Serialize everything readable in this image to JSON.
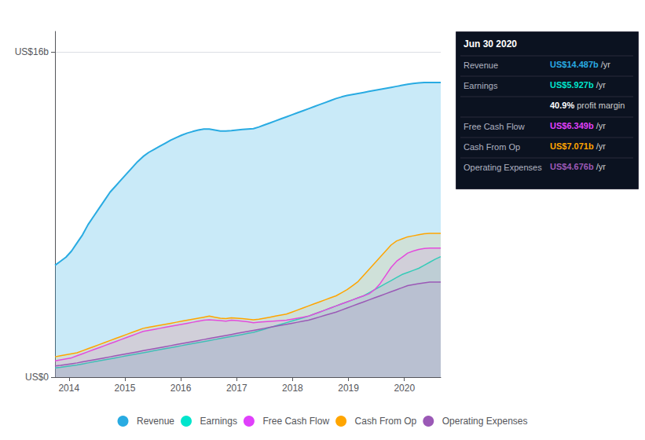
{
  "chart_data": {
    "type": "area",
    "x": [
      2013.75,
      2013.848571,
      2013.947143,
      2014.045714,
      2014.144286,
      2014.242857,
      2014.341429,
      2014.44,
      2014.538571,
      2014.637143,
      2014.735714,
      2014.834286,
      2014.932857,
      2015.031429,
      2015.13,
      2015.228571,
      2015.327143,
      2015.425714,
      2015.524286,
      2015.622857,
      2015.721429,
      2015.82,
      2015.918571,
      2016.017143,
      2016.115714,
      2016.214286,
      2016.312857,
      2016.411429,
      2016.51,
      2016.608571,
      2016.707143,
      2016.805714,
      2016.904286,
      2017.002857,
      2017.101429,
      2017.2,
      2017.298571,
      2017.397143,
      2017.495714,
      2017.594286,
      2017.692857,
      2017.791429,
      2017.89,
      2017.988571,
      2018.087143,
      2018.185714,
      2018.284286,
      2018.382857,
      2018.481429,
      2018.58,
      2018.678571,
      2018.777143,
      2018.875714,
      2018.974286,
      2019.072857,
      2019.171429,
      2019.27,
      2019.368571,
      2019.467143,
      2019.565714,
      2019.664286,
      2019.762857,
      2019.861429,
      2019.96,
      2020.058571,
      2020.157143,
      2020.255714,
      2020.354286,
      2020.452857,
      2020.551429,
      2020.65
    ],
    "series": [
      {
        "name": "Revenue",
        "color": "#29abe2",
        "values": [
          5.5,
          5.7,
          5.9,
          6.2,
          6.6,
          7.0,
          7.5,
          7.9,
          8.3,
          8.7,
          9.1,
          9.4,
          9.7,
          10.0,
          10.3,
          10.6,
          10.85,
          11.05,
          11.2,
          11.35,
          11.5,
          11.65,
          11.78,
          11.9,
          12.0,
          12.08,
          12.15,
          12.2,
          12.2,
          12.15,
          12.1,
          12.1,
          12.12,
          12.15,
          12.18,
          12.2,
          12.22,
          12.3,
          12.4,
          12.5,
          12.6,
          12.7,
          12.8,
          12.9,
          13.0,
          13.1,
          13.2,
          13.3,
          13.4,
          13.5,
          13.6,
          13.7,
          13.78,
          13.85,
          13.9,
          13.95,
          14.0,
          14.05,
          14.1,
          14.15,
          14.2,
          14.25,
          14.3,
          14.35,
          14.4,
          14.44,
          14.47,
          14.487,
          14.487,
          14.487,
          14.487
        ]
      },
      {
        "name": "Earnings",
        "color": "#00e5cc",
        "values": [
          0.45,
          0.48,
          0.52,
          0.56,
          0.6,
          0.65,
          0.7,
          0.75,
          0.8,
          0.85,
          0.9,
          0.95,
          1.0,
          1.05,
          1.1,
          1.15,
          1.2,
          1.25,
          1.3,
          1.35,
          1.4,
          1.45,
          1.5,
          1.55,
          1.6,
          1.65,
          1.7,
          1.75,
          1.8,
          1.85,
          1.9,
          1.95,
          2.0,
          2.05,
          2.1,
          2.15,
          2.2,
          2.28,
          2.36,
          2.44,
          2.52,
          2.6,
          2.68,
          2.76,
          2.84,
          2.92,
          3.0,
          3.1,
          3.2,
          3.3,
          3.4,
          3.5,
          3.6,
          3.7,
          3.8,
          3.9,
          4.0,
          4.15,
          4.3,
          4.45,
          4.6,
          4.75,
          4.9,
          5.05,
          5.15,
          5.25,
          5.35,
          5.5,
          5.65,
          5.8,
          5.927
        ]
      },
      {
        "name": "Free Cash Flow",
        "color": "#e040fb",
        "values": [
          0.8,
          0.85,
          0.9,
          0.95,
          1.05,
          1.15,
          1.25,
          1.35,
          1.45,
          1.55,
          1.65,
          1.75,
          1.85,
          1.95,
          2.05,
          2.15,
          2.25,
          2.3,
          2.35,
          2.4,
          2.45,
          2.5,
          2.55,
          2.6,
          2.65,
          2.7,
          2.75,
          2.8,
          2.82,
          2.8,
          2.78,
          2.75,
          2.8,
          2.78,
          2.75,
          2.72,
          2.68,
          2.7,
          2.72,
          2.74,
          2.76,
          2.78,
          2.8,
          2.85,
          2.9,
          2.95,
          3.0,
          3.1,
          3.2,
          3.3,
          3.4,
          3.5,
          3.6,
          3.7,
          3.8,
          3.9,
          4.0,
          4.1,
          4.3,
          4.6,
          5.0,
          5.4,
          5.7,
          5.9,
          6.1,
          6.2,
          6.28,
          6.33,
          6.349,
          6.349,
          6.349
        ]
      },
      {
        "name": "Cash From Op",
        "color": "#ffa500",
        "values": [
          1.0,
          1.05,
          1.1,
          1.15,
          1.2,
          1.3,
          1.4,
          1.5,
          1.6,
          1.7,
          1.8,
          1.9,
          2.0,
          2.1,
          2.2,
          2.3,
          2.4,
          2.45,
          2.5,
          2.55,
          2.6,
          2.65,
          2.7,
          2.75,
          2.8,
          2.85,
          2.9,
          2.95,
          3.0,
          2.95,
          2.9,
          2.88,
          2.92,
          2.9,
          2.88,
          2.85,
          2.82,
          2.85,
          2.9,
          2.95,
          3.0,
          3.05,
          3.1,
          3.2,
          3.3,
          3.4,
          3.5,
          3.6,
          3.7,
          3.8,
          3.9,
          4.0,
          4.15,
          4.3,
          4.5,
          4.7,
          5.0,
          5.3,
          5.6,
          5.9,
          6.2,
          6.5,
          6.7,
          6.8,
          6.9,
          6.95,
          7.0,
          7.05,
          7.071,
          7.071,
          7.071
        ]
      },
      {
        "name": "Operating Expenses",
        "color": "#9b59b6",
        "values": [
          0.55,
          0.58,
          0.62,
          0.66,
          0.7,
          0.75,
          0.8,
          0.85,
          0.9,
          0.95,
          1.0,
          1.05,
          1.1,
          1.15,
          1.2,
          1.25,
          1.3,
          1.35,
          1.4,
          1.45,
          1.5,
          1.55,
          1.6,
          1.65,
          1.7,
          1.75,
          1.8,
          1.85,
          1.9,
          1.95,
          2.0,
          2.05,
          2.1,
          2.15,
          2.2,
          2.25,
          2.3,
          2.35,
          2.4,
          2.45,
          2.5,
          2.55,
          2.6,
          2.65,
          2.7,
          2.75,
          2.8,
          2.88,
          2.96,
          3.04,
          3.12,
          3.2,
          3.3,
          3.4,
          3.5,
          3.6,
          3.7,
          3.8,
          3.9,
          4.0,
          4.1,
          4.2,
          4.3,
          4.4,
          4.5,
          4.55,
          4.6,
          4.64,
          4.676,
          4.676,
          4.676
        ]
      }
    ],
    "xlim": [
      2013.75,
      2020.65
    ],
    "xticks": [
      2014,
      2015,
      2016,
      2017,
      2018,
      2019,
      2020
    ],
    "ylim": [
      0,
      17.0
    ],
    "yticks": [
      {
        "value": 0,
        "label": "US$0"
      },
      {
        "value": 16,
        "label": "US$16b"
      }
    ],
    "grid": true,
    "legend": "bottom",
    "annotations": [
      {
        "text": "Jun 30 2020"
      },
      {
        "label": "Revenue",
        "highlight": "US$14.487b",
        "suffix": "/yr",
        "color": "#29abe2"
      },
      {
        "label": "Earnings",
        "highlight": "US$5.927b",
        "suffix": "/yr",
        "color": "#00e5cc"
      },
      {
        "highlight": "40.9%",
        "suffix": "profit margin",
        "color": "#ffffff"
      },
      {
        "label": "Free Cash Flow",
        "highlight": "US$6.349b",
        "suffix": "/yr",
        "color": "#e040fb"
      },
      {
        "label": "Cash From Op",
        "highlight": "US$7.071b",
        "suffix": "/yr",
        "color": "#ffa500"
      },
      {
        "label": "Operating Expenses",
        "highlight": "US$4.676b",
        "suffix": "/yr",
        "color": "#9b59b6"
      }
    ]
  }
}
